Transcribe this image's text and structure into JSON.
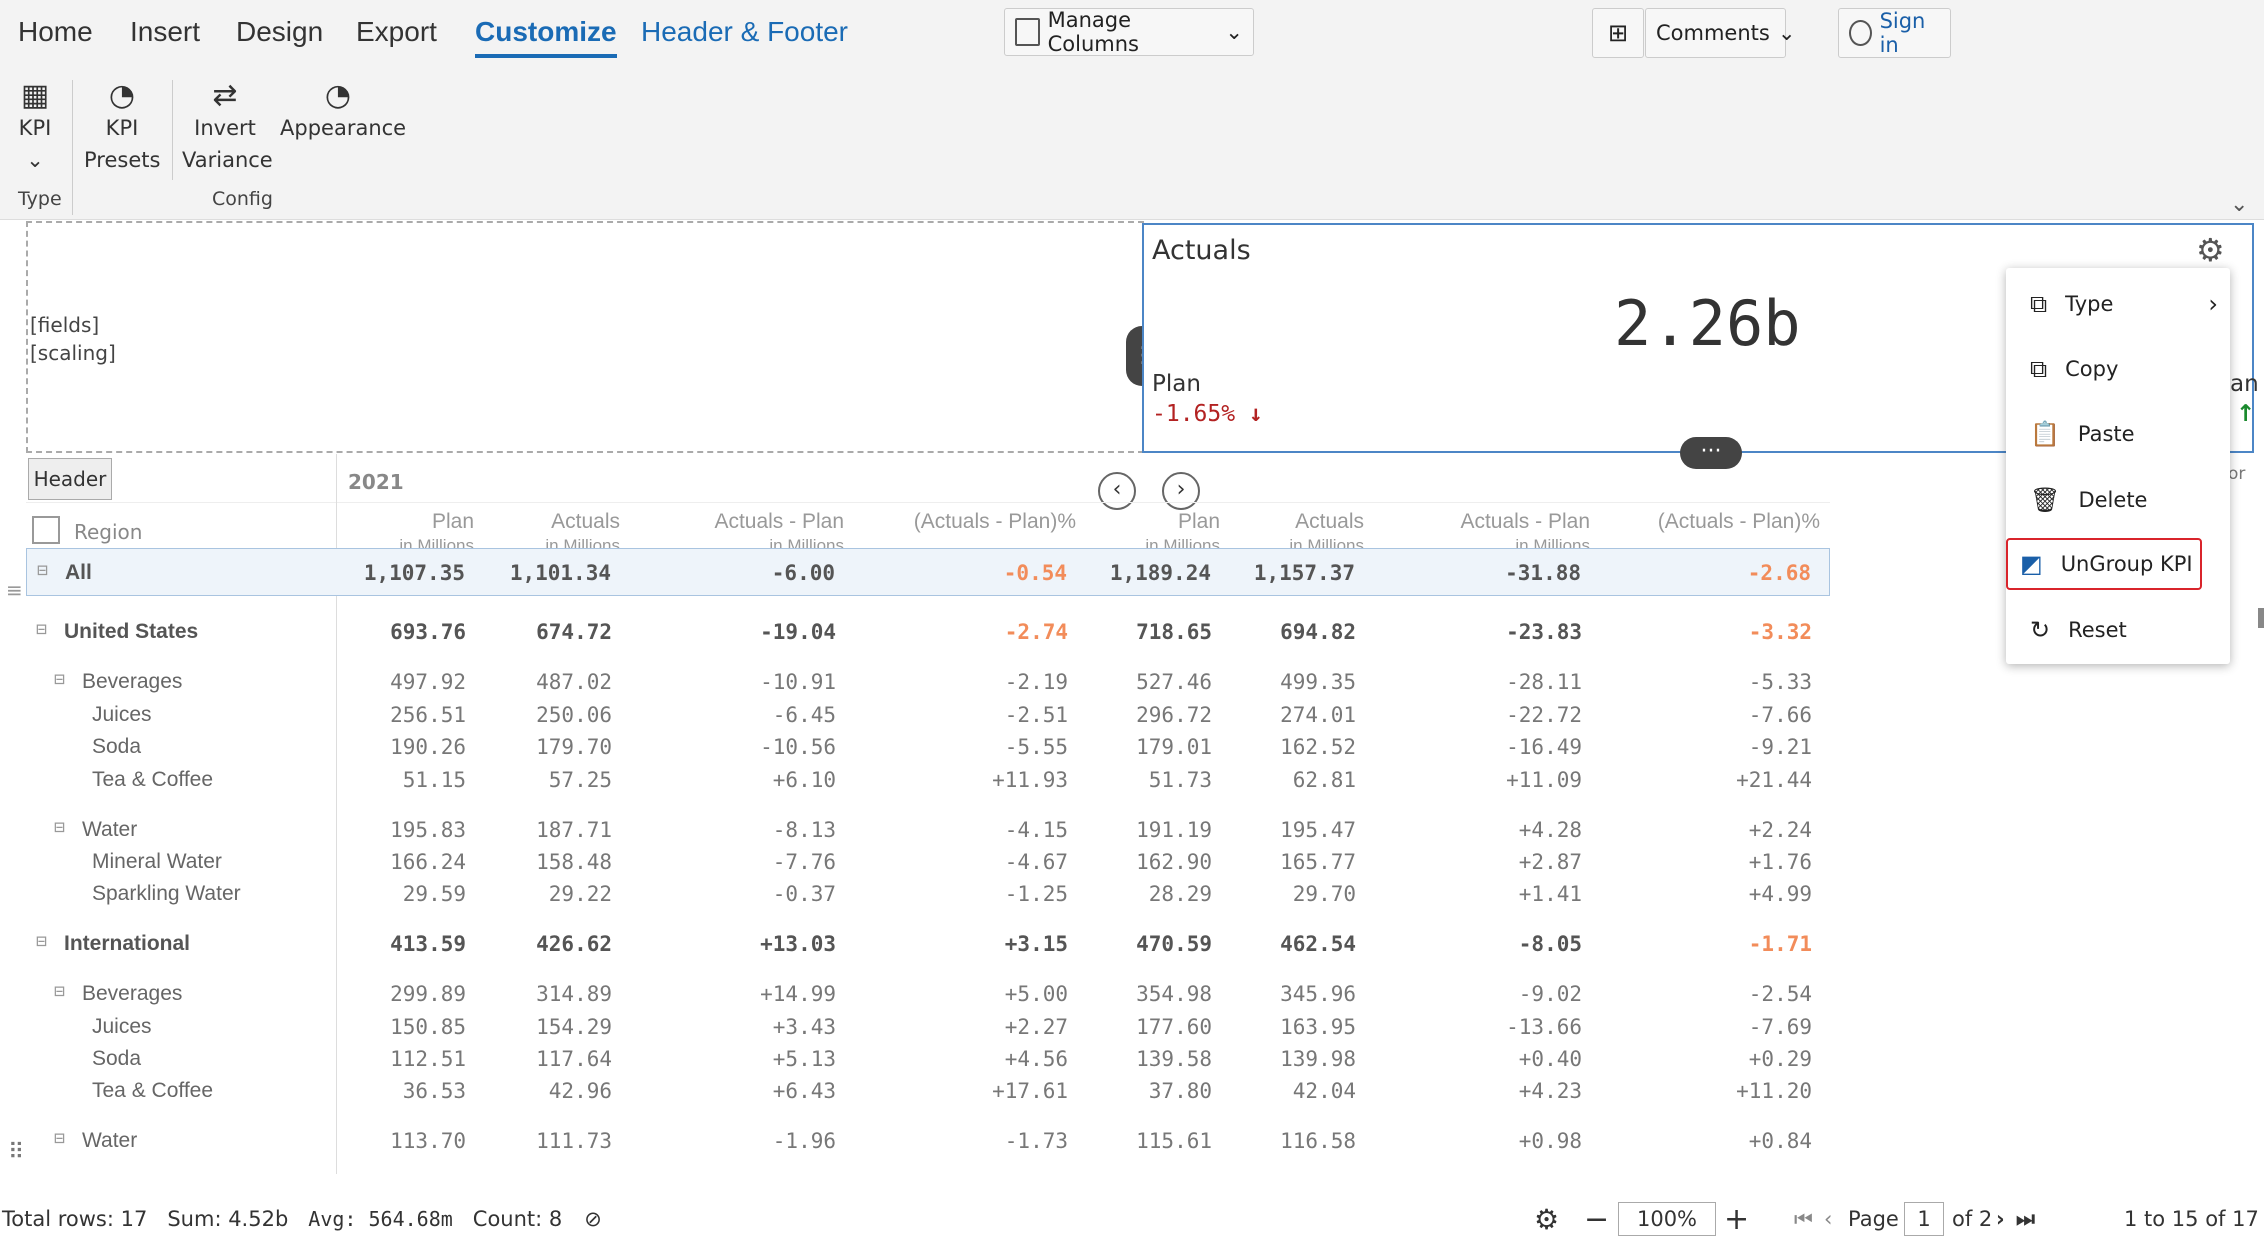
{
  "ribbon": {
    "tabs": [
      "Home",
      "Insert",
      "Design",
      "Export",
      "Customize",
      "Header & Footer"
    ],
    "manage_columns": "Manage Columns",
    "comments": "Comments",
    "sign_in": "Sign in",
    "kpi": "KPI",
    "kpi_presets_1": "KPI",
    "kpi_presets_2": "Presets",
    "invert_1": "Invert",
    "invert_2": "Variance",
    "appearance": "Appearance",
    "group_type": "Type",
    "group_config": "Config"
  },
  "kpi_area": {
    "fields": "[fields]",
    "scaling": "[scaling]"
  },
  "kpi_card": {
    "title": "Actuals",
    "value": "2.26b",
    "sub_label": "Plan",
    "sub_value": "-1.65%",
    "right_edge": "an",
    "right_edge2": "or"
  },
  "table": {
    "header_button": "Header",
    "year": "2021",
    "region": "Region",
    "col_headers": [
      [
        "Plan",
        "in Millions"
      ],
      [
        "Actuals",
        "in Millions"
      ],
      [
        "Actuals - Plan",
        "in Millions"
      ],
      [
        "(Actuals - Plan)%",
        ""
      ],
      [
        "Plan",
        "in Millions"
      ],
      [
        "Actuals",
        "in Millions"
      ],
      [
        "Actuals - Plan",
        "in Millions"
      ],
      [
        "(Actuals - Plan)%",
        ""
      ]
    ],
    "rows": [
      {
        "label": "All",
        "level": 0,
        "bold": true,
        "values": [
          "1,107.35",
          "1,101.34",
          "-6.00",
          "-0.54",
          "1,189.24",
          "1,157.37",
          "-31.88",
          "-2.68"
        ]
      },
      {
        "label": "United States",
        "level": 0,
        "bold": true,
        "values": [
          "693.76",
          "674.72",
          "-19.04",
          "-2.74",
          "718.65",
          "694.82",
          "-23.83",
          "-3.32"
        ]
      },
      {
        "label": "Beverages",
        "level": 1,
        "bold": false,
        "values": [
          "497.92",
          "487.02",
          "-10.91",
          "-2.19",
          "527.46",
          "499.35",
          "-28.11",
          "-5.33"
        ]
      },
      {
        "label": "Juices",
        "level": 2,
        "bold": false,
        "values": [
          "256.51",
          "250.06",
          "-6.45",
          "-2.51",
          "296.72",
          "274.01",
          "-22.72",
          "-7.66"
        ]
      },
      {
        "label": "Soda",
        "level": 2,
        "bold": false,
        "values": [
          "190.26",
          "179.70",
          "-10.56",
          "-5.55",
          "179.01",
          "162.52",
          "-16.49",
          "-9.21"
        ]
      },
      {
        "label": "Tea & Coffee",
        "level": 2,
        "bold": false,
        "values": [
          "51.15",
          "57.25",
          "+6.10",
          "+11.93",
          "51.73",
          "62.81",
          "+11.09",
          "+21.44"
        ]
      },
      {
        "label": "Water",
        "level": 1,
        "bold": false,
        "values": [
          "195.83",
          "187.71",
          "-8.13",
          "-4.15",
          "191.19",
          "195.47",
          "+4.28",
          "+2.24"
        ]
      },
      {
        "label": "Mineral Water",
        "level": 2,
        "bold": false,
        "values": [
          "166.24",
          "158.48",
          "-7.76",
          "-4.67",
          "162.90",
          "165.77",
          "+2.87",
          "+1.76"
        ]
      },
      {
        "label": "Sparkling Water",
        "level": 2,
        "bold": false,
        "values": [
          "29.59",
          "29.22",
          "-0.37",
          "-1.25",
          "28.29",
          "29.70",
          "+1.41",
          "+4.99"
        ]
      },
      {
        "label": "International",
        "level": 0,
        "bold": true,
        "values": [
          "413.59",
          "426.62",
          "+13.03",
          "+3.15",
          "470.59",
          "462.54",
          "-8.05",
          "-1.71"
        ]
      },
      {
        "label": "Beverages",
        "level": 1,
        "bold": false,
        "values": [
          "299.89",
          "314.89",
          "+14.99",
          "+5.00",
          "354.98",
          "345.96",
          "-9.02",
          "-2.54"
        ]
      },
      {
        "label": "Juices",
        "level": 2,
        "bold": false,
        "values": [
          "150.85",
          "154.29",
          "+3.43",
          "+2.27",
          "177.60",
          "163.95",
          "-13.66",
          "-7.69"
        ]
      },
      {
        "label": "Soda",
        "level": 2,
        "bold": false,
        "values": [
          "112.51",
          "117.64",
          "+5.13",
          "+4.56",
          "139.58",
          "139.98",
          "+0.40",
          "+0.29"
        ]
      },
      {
        "label": "Tea & Coffee",
        "level": 2,
        "bold": false,
        "values": [
          "36.53",
          "42.96",
          "+6.43",
          "+17.61",
          "37.80",
          "42.04",
          "+4.23",
          "+11.20"
        ]
      },
      {
        "label": "Water",
        "level": 1,
        "bold": false,
        "values": [
          "113.70",
          "111.73",
          "-1.96",
          "-1.73",
          "115.61",
          "116.58",
          "+0.98",
          "+0.84"
        ]
      }
    ]
  },
  "context_menu": {
    "items": [
      "Type",
      "Copy",
      "Paste",
      "Delete",
      "UnGroup KPI",
      "Reset"
    ]
  },
  "status": {
    "total_rows": "Total rows: 17",
    "sum": "Sum: 4.52b",
    "avg": "Avg: 564.68m",
    "count": "Count: 8",
    "zoom": "100%",
    "page_label": "Page",
    "page": "1",
    "of_pages": "of 2",
    "range": "1 to 15 of 17"
  }
}
